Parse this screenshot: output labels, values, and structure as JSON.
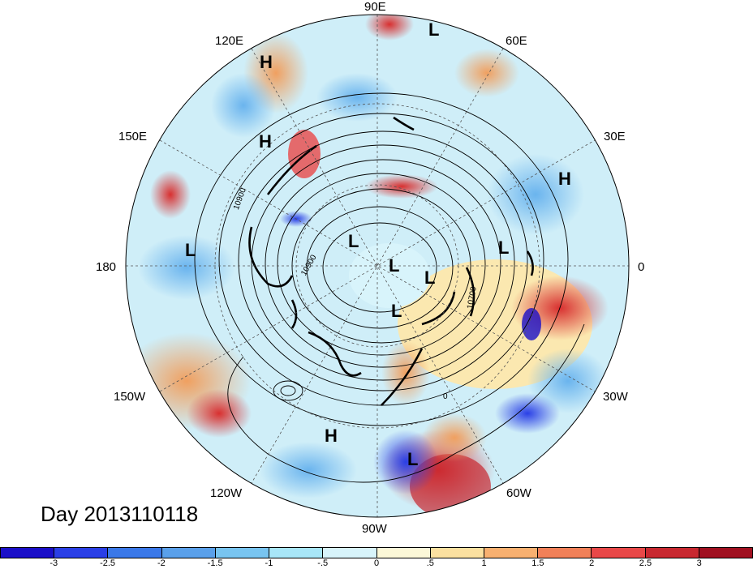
{
  "title": "Day 2013110118",
  "longitude_labels": {
    "lon_90e": "90E",
    "lon_60e": "60E",
    "lon_120e": "120E",
    "lon_150e": "150E",
    "lon_30e": "30E",
    "lon_180": "180",
    "lon_0": "0",
    "lon_150w": "150W",
    "lon_30w": "30W",
    "lon_120w": "120W",
    "lon_60w": "60W",
    "lon_90w": "90W"
  },
  "pressure_centers": [
    {
      "type": "L"
    },
    {
      "type": "H"
    },
    {
      "type": "H"
    },
    {
      "type": "H"
    },
    {
      "type": "L"
    },
    {
      "type": "L"
    },
    {
      "type": "L"
    },
    {
      "type": "L"
    },
    {
      "type": "L"
    },
    {
      "type": "L"
    },
    {
      "type": "H"
    },
    {
      "type": "L"
    }
  ],
  "contour_labels": {
    "c1": "10900",
    "c2": "10900",
    "c3": "10700",
    "c4": "0"
  },
  "colorbar": {
    "ticks": [
      "-3",
      "-2.5",
      "-2",
      "-1.5",
      "-1",
      "-.5",
      "0",
      ".5",
      "1",
      "1.5",
      "2",
      "2.5",
      "3"
    ],
    "colors": [
      "#1a0fc8",
      "#2a3fe6",
      "#3a78e8",
      "#5aa0ea",
      "#78c4f0",
      "#a8e6f8",
      "#d8f4fb",
      "#fcf8d8",
      "#fbe0a0",
      "#f8b070",
      "#f08058",
      "#e84848",
      "#c82830",
      "#a01020"
    ]
  }
}
